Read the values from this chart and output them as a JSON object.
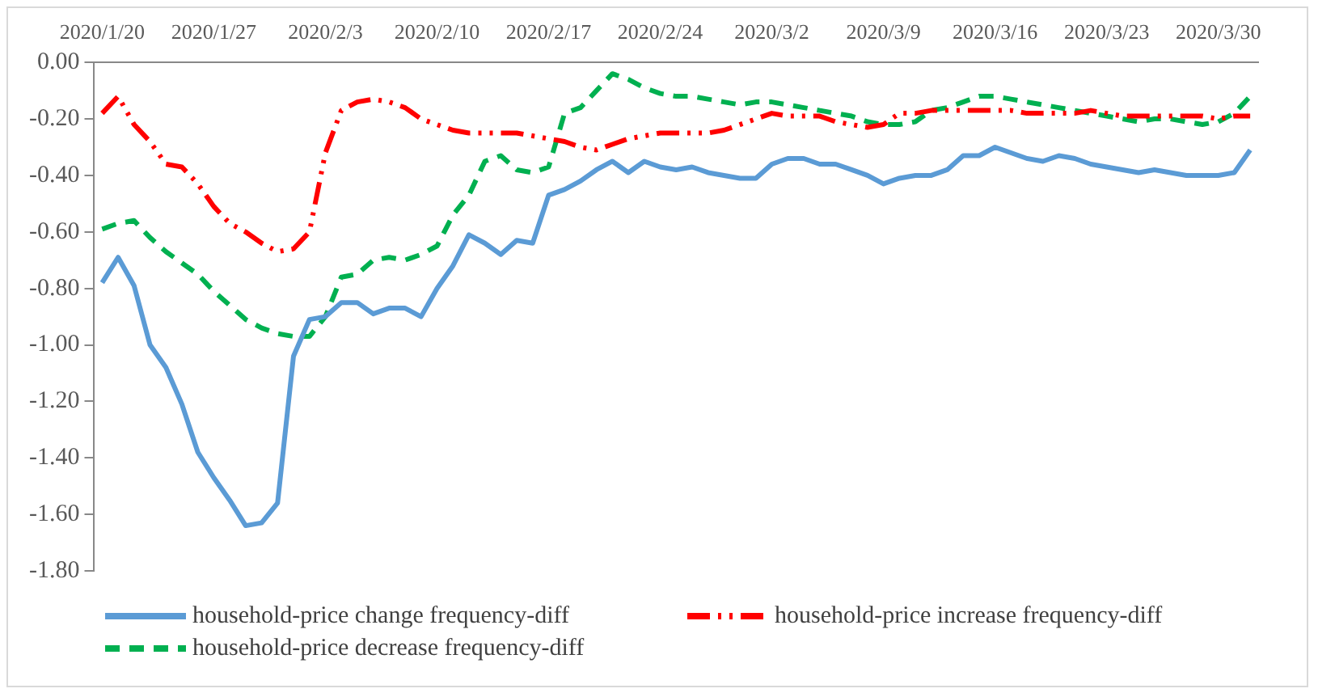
{
  "chart_data": {
    "type": "line",
    "categories": [
      "2020/1/20",
      null,
      null,
      null,
      null,
      null,
      null,
      "2020/1/27",
      null,
      null,
      null,
      null,
      null,
      null,
      "2020/2/3",
      null,
      null,
      null,
      null,
      null,
      null,
      "2020/2/10",
      null,
      null,
      null,
      null,
      null,
      null,
      "2020/2/17",
      null,
      null,
      null,
      null,
      null,
      null,
      "2020/2/24",
      null,
      null,
      null,
      null,
      null,
      null,
      "2020/3/2",
      null,
      null,
      null,
      null,
      null,
      null,
      "2020/3/9",
      null,
      null,
      null,
      null,
      null,
      null,
      "2020/3/16",
      null,
      null,
      null,
      null,
      null,
      null,
      "2020/3/23",
      null,
      null,
      null,
      null,
      null,
      null,
      "2020/3/30",
      null,
      null
    ],
    "series": [
      {
        "name": "household-price change frequency-diff",
        "color": "#5b9bd5",
        "line_style": "solid",
        "values": [
          -0.78,
          -0.69,
          -0.79,
          -1.0,
          -1.08,
          -1.21,
          -1.38,
          -1.47,
          -1.55,
          -1.64,
          -1.63,
          -1.56,
          -1.04,
          -0.91,
          -0.9,
          -0.85,
          -0.85,
          -0.89,
          -0.87,
          -0.87,
          -0.9,
          -0.8,
          -0.72,
          -0.61,
          -0.64,
          -0.68,
          -0.63,
          -0.64,
          -0.47,
          -0.45,
          -0.42,
          -0.38,
          -0.35,
          -0.39,
          -0.35,
          -0.37,
          -0.38,
          -0.37,
          -0.39,
          -0.4,
          -0.41,
          -0.41,
          -0.36,
          -0.34,
          -0.34,
          -0.36,
          -0.36,
          -0.38,
          -0.4,
          -0.43,
          -0.41,
          -0.4,
          -0.4,
          -0.38,
          -0.33,
          -0.33,
          -0.3,
          -0.32,
          -0.34,
          -0.35,
          -0.33,
          -0.34,
          -0.36,
          -0.37,
          -0.38,
          -0.39,
          -0.38,
          -0.39,
          -0.4,
          -0.4,
          -0.4,
          -0.39,
          -0.31
        ]
      },
      {
        "name": "household-price increase frequency-diff",
        "color": "#ff0000",
        "line_style": "dotted",
        "values": [
          -0.18,
          -0.12,
          -0.22,
          -0.28,
          -0.36,
          -0.37,
          -0.43,
          -0.51,
          -0.57,
          -0.6,
          -0.64,
          -0.67,
          -0.66,
          -0.6,
          -0.32,
          -0.17,
          -0.14,
          -0.13,
          -0.14,
          -0.16,
          -0.2,
          -0.22,
          -0.24,
          -0.25,
          -0.25,
          -0.25,
          -0.25,
          -0.26,
          -0.27,
          -0.28,
          -0.3,
          -0.31,
          -0.29,
          -0.27,
          -0.26,
          -0.25,
          -0.25,
          -0.25,
          -0.25,
          -0.24,
          -0.22,
          -0.2,
          -0.18,
          -0.19,
          -0.19,
          -0.19,
          -0.21,
          -0.22,
          -0.23,
          -0.22,
          -0.18,
          -0.18,
          -0.17,
          -0.17,
          -0.17,
          -0.17,
          -0.17,
          -0.17,
          -0.18,
          -0.18,
          -0.18,
          -0.18,
          -0.17,
          -0.18,
          -0.19,
          -0.19,
          -0.19,
          -0.19,
          -0.19,
          -0.19,
          -0.2,
          -0.19,
          -0.19
        ]
      },
      {
        "name": "household-price decrease frequency-diff",
        "color": "#00b050",
        "line_style": "dashed",
        "values": [
          -0.59,
          -0.57,
          -0.56,
          -0.62,
          -0.67,
          -0.71,
          -0.75,
          -0.81,
          -0.86,
          -0.91,
          -0.94,
          -0.96,
          -0.97,
          -0.97,
          -0.9,
          -0.76,
          -0.75,
          -0.7,
          -0.69,
          -0.7,
          -0.68,
          -0.65,
          -0.54,
          -0.47,
          -0.35,
          -0.33,
          -0.38,
          -0.39,
          -0.37,
          -0.18,
          -0.16,
          -0.1,
          -0.04,
          -0.06,
          -0.09,
          -0.11,
          -0.12,
          -0.12,
          -0.13,
          -0.14,
          -0.15,
          -0.14,
          -0.14,
          -0.15,
          -0.16,
          -0.17,
          -0.18,
          -0.19,
          -0.21,
          -0.22,
          -0.22,
          -0.21,
          -0.17,
          -0.16,
          -0.14,
          -0.12,
          -0.12,
          -0.13,
          -0.14,
          -0.15,
          -0.16,
          -0.17,
          -0.18,
          -0.19,
          -0.2,
          -0.21,
          -0.2,
          -0.2,
          -0.21,
          -0.22,
          -0.21,
          -0.18,
          -0.12
        ]
      }
    ],
    "ylim": [
      -1.8,
      0
    ],
    "yticks": [
      {
        "value": 0,
        "label": "0.00"
      },
      {
        "value": -0.2,
        "label": "-0.20"
      },
      {
        "value": -0.4,
        "label": "-0.40"
      },
      {
        "value": -0.6,
        "label": "-0.60"
      },
      {
        "value": -0.8,
        "label": "-0.80"
      },
      {
        "value": -1.0,
        "label": "-1.00"
      },
      {
        "value": -1.2,
        "label": "-1.20"
      },
      {
        "value": -1.4,
        "label": "-1.40"
      },
      {
        "value": -1.6,
        "label": "-1.60"
      },
      {
        "value": -1.8,
        "label": "-1.80"
      }
    ],
    "grid": false,
    "legend": "bottom",
    "marker": "none"
  }
}
